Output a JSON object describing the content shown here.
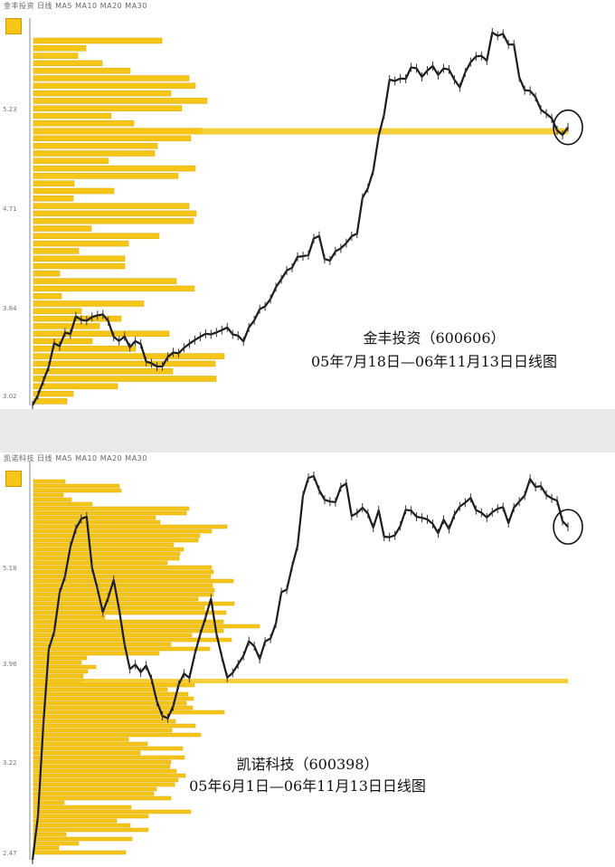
{
  "charts": [
    {
      "title": "金丰投资（600606）",
      "subtitle": "05年7月18日—06年11月13日日线图",
      "color_bar": "#f5c518",
      "color_line": "#1a1a1a",
      "chart_data": {
        "type": "line",
        "x": [
          0,
          3,
          6,
          9,
          12,
          15,
          18,
          21,
          24,
          27,
          30,
          33,
          36,
          39,
          42,
          45,
          48,
          51,
          54,
          57,
          60,
          63,
          66,
          69,
          72,
          75,
          78,
          81,
          84,
          87,
          90,
          93,
          96,
          99,
          102,
          105,
          108,
          111,
          114,
          117,
          120,
          123,
          126,
          129,
          132,
          135,
          138,
          141,
          144,
          147,
          150,
          153,
          156,
          159,
          162,
          165,
          168,
          171,
          174,
          177,
          180,
          183,
          186,
          189,
          192,
          195,
          198,
          201,
          204,
          207,
          210,
          213,
          216,
          219,
          222,
          225,
          228,
          231,
          234,
          237,
          240,
          243,
          246,
          249,
          252,
          255,
          258,
          261,
          264,
          267,
          270,
          273,
          276,
          279,
          282,
          285,
          288,
          291,
          294,
          297
        ],
        "series": [
          {
            "values": [
              2.0,
              6.8,
              13.4,
              19.8,
              30.6,
              29.3,
              35.5,
              34.9,
              43.0,
              41.4,
              41.0,
              42.7,
              43.5,
              43.9,
              40.8,
              33.6,
              31.7,
              33.8,
              28.8,
              31.6,
              30.3,
              22.2,
              21.4,
              19.9,
              20.0,
              24.3,
              26.4,
              26.0,
              28.5,
              30.4,
              32.1,
              33.6,
              35.0,
              34.7,
              35.6,
              36.7,
              37.9,
              34.7,
              34.1,
              31.5,
              37.9,
              41.2,
              46.3,
              47.6,
              51.0,
              56.4,
              60.1,
              64.1,
              65.4,
              70.4,
              70.7,
              71.2,
              78.8,
              80.0,
              69.4,
              68.7,
              72.9,
              74.3,
              76.7,
              79.9,
              81.1,
              97.5,
              101.9,
              110.0,
              126.0,
              136.0,
              151.9,
              151.3,
              152.5,
              152.3,
              157.6,
              157.1,
              153.2,
              156.1,
              158.2,
              154.1,
              157.1,
              156.6,
              151.9,
              148.4,
              155.3,
              160.0,
              162.6,
              162.9,
              160.7,
              173.6,
              172.1,
              173.0,
              168.1,
              168.1,
              153.0,
              147.1,
              146.8,
              143.9,
              138.1,
              136.3,
              134.1,
              128.6,
              126.5,
              130.0
            ]
          }
        ],
        "volume_profile": [
          142,
          58,
          49,
          76,
          107,
          172,
          179,
          152,
          192,
          164,
          86,
          111,
          186,
          174,
          137,
          134,
          83,
          179,
          160,
          45,
          89,
          44,
          172,
          180,
          177,
          64,
          139,
          105,
          50,
          101,
          101,
          29,
          158,
          178,
          31,
          122,
          53,
          97,
          73,
          150,
          65,
          113,
          211,
          201,
          154,
          202,
          93,
          44,
          37
        ],
        "profile_highlight_index": 12,
        "circled_last_point": true,
        "xlabel": "",
        "ylabel": "",
        "grid": false
      },
      "header_text": "金丰投资  日线  MA5  MA10  MA20  MA30",
      "axis_labels": [
        "5.23",
        "4.71",
        "3.84",
        "3.02"
      ]
    },
    {
      "title": "凯诺科技（600398）",
      "subtitle": "05年6月1日—06年11月13日日线图",
      "color_bar": "#f5c518",
      "color_line": "#1a1a1a",
      "chart_data": {
        "type": "line",
        "x": [
          0,
          3,
          6,
          9,
          12,
          15,
          18,
          21,
          24,
          27,
          30,
          33,
          36,
          39,
          42,
          45,
          48,
          51,
          54,
          57,
          60,
          63,
          66,
          69,
          72,
          75,
          78,
          81,
          84,
          87,
          90,
          93,
          96,
          99,
          102,
          105,
          108,
          111,
          114,
          117,
          120,
          123,
          126,
          129,
          132,
          135,
          138,
          141,
          144,
          147,
          150,
          153,
          156,
          159,
          162,
          165,
          168,
          171,
          174,
          177,
          180,
          183,
          186,
          189,
          192,
          195,
          198,
          201,
          204,
          207,
          210,
          213,
          216,
          219,
          222,
          225,
          228,
          231,
          234,
          237,
          240,
          243,
          246,
          249,
          252,
          255,
          258,
          261,
          264,
          267,
          270,
          273,
          276,
          279,
          282,
          285,
          288,
          291,
          294,
          297
        ],
        "series": [
          {
            "values": [
              1.5,
              17.9,
              52.8,
              80.6,
              87.2,
              101.9,
              108.1,
              119.3,
              125.9,
              129.7,
              130.5,
              111.3,
              103.4,
              94.6,
              100.1,
              106.7,
              95.7,
              82.6,
              73.2,
              74.9,
              72.0,
              74.5,
              69.4,
              61.0,
              55.6,
              54.7,
              59.2,
              67.3,
              71.5,
              69.9,
              78.9,
              86.3,
              92.7,
              99.7,
              86.5,
              77.8,
              70.0,
              71.8,
              75.0,
              78.2,
              83.7,
              81.8,
              77.0,
              83.6,
              84.7,
              90.4,
              102.1,
              103.1,
              111.8,
              119.5,
              138.4,
              145.1,
              145.8,
              140.5,
              136.9,
              136.2,
              136.0,
              141.6,
              143.0,
              130.8,
              131.9,
              133.9,
              131.7,
              126.4,
              132.9,
              123.0,
              122.8,
              123.5,
              127.0,
              133.1,
              132.8,
              130.5,
              130.1,
              129.5,
              127.8,
              124.3,
              129.4,
              125.9,
              131.2,
              134.3,
              135.8,
              137.6,
              133.0,
              132.0,
              130.2,
              132.2,
              133.5,
              134.1,
              128.1,
              133.9,
              136.2,
              138.5,
              144.7,
              141.7,
              142.0,
              138.7,
              137.4,
              136.5,
              128.9,
              126.7
            ]
          }
        ],
        "volume_profile": [
          35,
          95,
          97,
          33,
          42,
          65,
          172,
          169,
          135,
          140,
          214,
          197,
          184,
          182,
          155,
          166,
          162,
          161,
          148,
          197,
          199,
          196,
          221,
          198,
          200,
          199,
          182,
          222,
          189,
          213,
          79,
          210,
          250,
          210,
          175,
          219,
          152,
          195,
          139,
          59,
          53,
          69,
          60,
          55,
          55,
          178,
          148,
          171,
          177,
          169,
          176,
          211,
          150,
          157,
          179,
          153,
          185,
          105,
          126,
          165,
          118,
          167,
          152,
          151,
          158,
          168,
          160,
          156,
          136,
          133,
          152,
          34,
          108,
          174,
          127,
          92,
          107,
          127,
          36,
          109,
          50,
          28,
          102
        ],
        "profile_highlight_index": 44,
        "circled_last_point": true,
        "xlabel": "",
        "ylabel": "",
        "grid": false
      },
      "header_text": "凯诺科技  日线  MA5  MA10  MA20  MA30",
      "axis_labels": [
        "5.18",
        "3.96",
        "3.22",
        "2.47"
      ]
    }
  ]
}
